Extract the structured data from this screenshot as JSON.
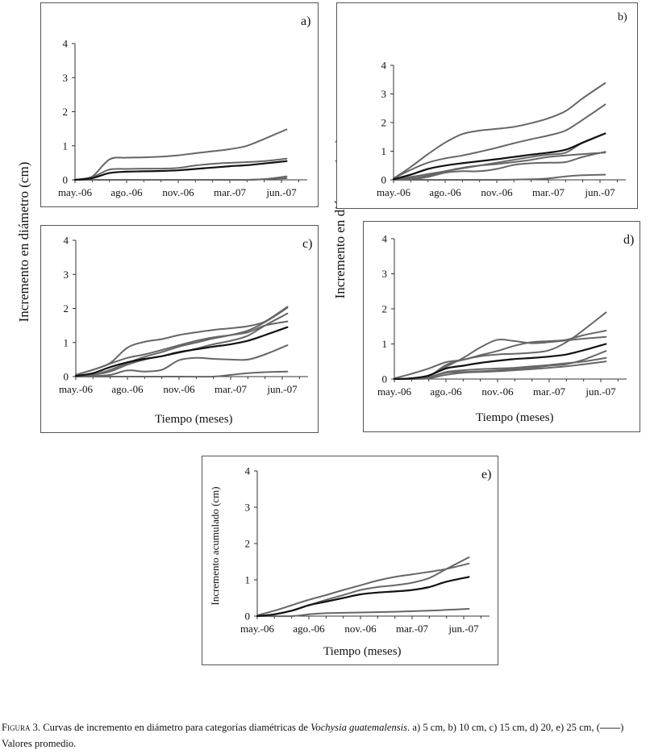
{
  "shared": {
    "ylabel": "Incremento  en  diámetro  (cm)",
    "xtitle": "Tiempo (meses)",
    "colors": {
      "tree": "#666666",
      "average": "#111111",
      "axis": "#333333"
    }
  },
  "chart_data": [
    {
      "id": "a",
      "type": "line",
      "label": "a)",
      "categories": [
        "may.-06",
        "ago.-06",
        "nov.-06",
        "mar.-07",
        "jun.-07"
      ],
      "xlim": [
        0,
        13.5
      ],
      "ylim": [
        0,
        4
      ],
      "yticks": [
        0,
        1,
        2,
        3,
        4
      ],
      "xlabel": "",
      "ylabel": "",
      "series": [
        {
          "name": "tree",
          "x": [
            0,
            1,
            2,
            3,
            4,
            5,
            6,
            7,
            8,
            9,
            10,
            11,
            12.3
          ],
          "values": [
            0,
            0.1,
            0.6,
            0.65,
            0.66,
            0.68,
            0.72,
            0.78,
            0.84,
            0.9,
            1.0,
            1.2,
            1.48
          ]
        },
        {
          "name": "tree",
          "x": [
            0,
            1,
            2,
            3,
            4,
            5,
            6,
            7,
            8,
            9,
            10,
            11,
            12.3
          ],
          "values": [
            0,
            0.08,
            0.3,
            0.32,
            0.33,
            0.33,
            0.35,
            0.42,
            0.47,
            0.5,
            0.52,
            0.55,
            0.62
          ]
        },
        {
          "name": "tree",
          "x": [
            0,
            2,
            4,
            6,
            8,
            10,
            11,
            12.3
          ],
          "values": [
            0,
            0,
            0,
            0,
            0,
            0,
            0.02,
            0.1
          ]
        },
        {
          "name": "tree",
          "x": [
            0,
            2,
            4,
            6,
            8,
            10,
            12.3
          ],
          "values": [
            0,
            0,
            0,
            0,
            0,
            0,
            0.05
          ]
        },
        {
          "name": "average",
          "x": [
            0,
            1,
            2,
            3,
            4,
            5,
            6,
            7,
            8,
            9,
            10,
            11,
            12.3
          ],
          "values": [
            0,
            0.05,
            0.2,
            0.24,
            0.25,
            0.26,
            0.28,
            0.32,
            0.36,
            0.4,
            0.43,
            0.48,
            0.55
          ]
        }
      ]
    },
    {
      "id": "b",
      "type": "line",
      "label": "b)",
      "categories": [
        "may.-06",
        "ago.-06",
        "nov.-06",
        "mar.-07",
        "jun.-07"
      ],
      "xlim": [
        0,
        13.5
      ],
      "ylim": [
        0,
        4
      ],
      "yticks": [
        0,
        1,
        2,
        3,
        4
      ],
      "xlabel": "",
      "ylabel": "",
      "series": [
        {
          "name": "tree",
          "x": [
            0,
            1,
            2,
            3,
            4,
            5,
            6,
            7,
            8,
            9,
            10,
            11,
            12.3
          ],
          "values": [
            0.05,
            0.45,
            0.9,
            1.3,
            1.6,
            1.72,
            1.78,
            1.85,
            1.98,
            2.15,
            2.4,
            2.85,
            3.38
          ]
        },
        {
          "name": "tree",
          "x": [
            0,
            1,
            2,
            3,
            4,
            5,
            6,
            7,
            8,
            9,
            10,
            11,
            12.3
          ],
          "values": [
            0.05,
            0.35,
            0.6,
            0.75,
            0.85,
            0.98,
            1.12,
            1.28,
            1.42,
            1.55,
            1.72,
            2.1,
            2.63
          ]
        },
        {
          "name": "tree",
          "x": [
            0,
            1,
            2,
            3,
            4,
            5,
            6,
            7,
            8,
            9,
            10,
            11,
            12.3
          ],
          "values": [
            0,
            0.1,
            0.2,
            0.3,
            0.4,
            0.5,
            0.6,
            0.7,
            0.8,
            0.88,
            0.95,
            1.3,
            1.62
          ]
        },
        {
          "name": "tree",
          "x": [
            0,
            1,
            2,
            3,
            4,
            5,
            6,
            7,
            8,
            9,
            10,
            11,
            12.3
          ],
          "values": [
            0,
            0.05,
            0.15,
            0.3,
            0.42,
            0.5,
            0.55,
            0.62,
            0.7,
            0.8,
            0.85,
            0.9,
            0.95
          ]
        },
        {
          "name": "tree",
          "x": [
            0,
            1,
            2,
            3,
            4,
            5,
            6,
            7,
            8,
            9,
            10,
            11,
            12.3
          ],
          "values": [
            0,
            0.02,
            0.1,
            0.25,
            0.3,
            0.3,
            0.38,
            0.52,
            0.58,
            0.6,
            0.62,
            0.8,
            0.98
          ]
        },
        {
          "name": "tree",
          "x": [
            0,
            2,
            4,
            6,
            8,
            9,
            10,
            11,
            12.3
          ],
          "values": [
            0,
            0,
            0,
            0,
            0.02,
            0.05,
            0.12,
            0.16,
            0.18
          ]
        },
        {
          "name": "average",
          "x": [
            0,
            1,
            2,
            3,
            4,
            5,
            6,
            7,
            8,
            9,
            10,
            11,
            12.3
          ],
          "values": [
            0.02,
            0.18,
            0.38,
            0.5,
            0.58,
            0.65,
            0.72,
            0.8,
            0.88,
            0.95,
            1.05,
            1.3,
            1.62
          ]
        }
      ]
    },
    {
      "id": "c",
      "type": "line",
      "label": "c)",
      "categories": [
        "may.-06",
        "ago.-06",
        "nov.-06",
        "mar.-07",
        "jun.-07"
      ],
      "xlim": [
        0,
        13.5
      ],
      "ylim": [
        0,
        4
      ],
      "yticks": [
        0,
        1,
        2,
        3,
        4
      ],
      "xlabel": "Tiempo (meses)",
      "ylabel": "",
      "series": [
        {
          "name": "tree",
          "x": [
            0,
            1,
            2,
            3,
            4,
            5,
            6,
            7,
            8,
            9,
            10,
            11,
            12.3
          ],
          "values": [
            0.05,
            0.2,
            0.4,
            0.85,
            1.02,
            1.1,
            1.22,
            1.3,
            1.37,
            1.42,
            1.48,
            1.62,
            2.05
          ]
        },
        {
          "name": "tree",
          "x": [
            0,
            1,
            2,
            3,
            4,
            5,
            6,
            7,
            8,
            9,
            10,
            11,
            12.3
          ],
          "values": [
            0.05,
            0.2,
            0.38,
            0.55,
            0.65,
            0.78,
            0.92,
            1.05,
            1.15,
            1.22,
            1.3,
            1.5,
            1.62
          ]
        },
        {
          "name": "tree",
          "x": [
            0,
            1,
            2,
            3,
            4,
            5,
            6,
            7,
            8,
            9,
            10,
            11,
            12.3
          ],
          "values": [
            0,
            0.05,
            0.2,
            0.4,
            0.58,
            0.72,
            0.88,
            1.0,
            1.12,
            1.22,
            1.35,
            1.6,
            2.02
          ]
        },
        {
          "name": "tree",
          "x": [
            0,
            1,
            2,
            3,
            4,
            5,
            6,
            7,
            8,
            9,
            10,
            11,
            12.3
          ],
          "values": [
            0,
            0.05,
            0.15,
            0.35,
            0.5,
            0.6,
            0.7,
            0.82,
            0.95,
            1.05,
            1.2,
            1.5,
            1.85
          ]
        },
        {
          "name": "tree",
          "x": [
            0,
            1,
            2,
            3,
            4,
            5,
            6,
            7,
            8,
            9,
            10,
            11,
            12.3
          ],
          "values": [
            0,
            0.02,
            0.05,
            0.18,
            0.15,
            0.2,
            0.48,
            0.55,
            0.52,
            0.5,
            0.5,
            0.65,
            0.92
          ]
        },
        {
          "name": "tree",
          "x": [
            0,
            2,
            4,
            6,
            8,
            9,
            10,
            11,
            12.3
          ],
          "values": [
            0,
            0,
            0,
            0,
            0,
            0.05,
            0.1,
            0.13,
            0.15
          ]
        },
        {
          "name": "average",
          "x": [
            0,
            1,
            2,
            3,
            4,
            5,
            6,
            7,
            8,
            9,
            10,
            11,
            12.3
          ],
          "values": [
            0.02,
            0.1,
            0.28,
            0.42,
            0.52,
            0.6,
            0.72,
            0.8,
            0.88,
            0.95,
            1.05,
            1.22,
            1.45
          ]
        }
      ]
    },
    {
      "id": "d",
      "type": "line",
      "label": "d)",
      "categories": [
        "may.-06",
        "ago.-06",
        "nov.-06",
        "mar.-07",
        "jun.-07"
      ],
      "xlim": [
        0,
        13.5
      ],
      "ylim": [
        0,
        4
      ],
      "yticks": [
        0,
        1,
        2,
        3,
        4
      ],
      "xlabel": "Tiempo (meses)",
      "ylabel": "",
      "series": [
        {
          "name": "tree",
          "x": [
            0,
            1,
            2,
            3,
            4,
            5,
            6,
            7,
            8,
            9,
            10,
            11,
            12.3
          ],
          "values": [
            0.02,
            0.15,
            0.3,
            0.48,
            0.55,
            0.68,
            0.8,
            0.95,
            1.05,
            1.08,
            1.12,
            1.25,
            1.38
          ]
        },
        {
          "name": "tree",
          "x": [
            0,
            1,
            2,
            3,
            4,
            5,
            6,
            7,
            8,
            9,
            10,
            11,
            12.3
          ],
          "values": [
            0,
            0.02,
            0.1,
            0.35,
            0.6,
            0.9,
            1.12,
            1.08,
            1.02,
            1.05,
            1.1,
            1.15,
            1.2
          ]
        },
        {
          "name": "tree",
          "x": [
            0,
            1,
            2,
            3,
            4,
            5,
            6,
            7,
            8,
            9,
            10,
            11,
            12.3
          ],
          "values": [
            0,
            0.02,
            0.08,
            0.4,
            0.55,
            0.65,
            0.7,
            0.72,
            0.75,
            0.82,
            1.05,
            1.4,
            1.9
          ]
        },
        {
          "name": "tree",
          "x": [
            0,
            1,
            2,
            3,
            4,
            5,
            6,
            7,
            8,
            9,
            10,
            11,
            12.3
          ],
          "values": [
            0,
            0.01,
            0.05,
            0.18,
            0.2,
            0.22,
            0.25,
            0.28,
            0.32,
            0.38,
            0.42,
            0.55,
            0.8
          ]
        },
        {
          "name": "tree",
          "x": [
            0,
            1,
            2,
            3,
            4,
            5,
            6,
            7,
            8,
            9,
            10,
            11,
            12.3
          ],
          "values": [
            0,
            0.01,
            0.05,
            0.2,
            0.25,
            0.28,
            0.3,
            0.32,
            0.36,
            0.4,
            0.45,
            0.5,
            0.6
          ]
        },
        {
          "name": "tree",
          "x": [
            0,
            1,
            2,
            3,
            4,
            5,
            6,
            7,
            8,
            9,
            10,
            11,
            12.3
          ],
          "values": [
            0,
            0,
            0.02,
            0.12,
            0.18,
            0.2,
            0.22,
            0.25,
            0.28,
            0.32,
            0.36,
            0.42,
            0.5
          ]
        },
        {
          "name": "average",
          "x": [
            0,
            1,
            2,
            3,
            4,
            5,
            6,
            7,
            8,
            9,
            10,
            11,
            12.3
          ],
          "values": [
            0,
            0.02,
            0.1,
            0.3,
            0.38,
            0.46,
            0.52,
            0.57,
            0.6,
            0.64,
            0.7,
            0.82,
            1.0
          ]
        }
      ]
    },
    {
      "id": "e",
      "type": "line",
      "label": "e)",
      "categories": [
        "may.-06",
        "ago.-06",
        "nov.-06",
        "mar.-07",
        "jun.-07"
      ],
      "xlim": [
        0,
        13.5
      ],
      "ylim": [
        0,
        4
      ],
      "yticks": [
        0,
        1,
        2,
        3,
        4
      ],
      "xlabel": "Tiempo (meses)",
      "ylabel": "Incremento acumulado (cm)",
      "series": [
        {
          "name": "tree",
          "x": [
            0,
            1,
            2,
            3,
            4,
            5,
            6,
            7,
            8,
            9,
            10,
            11,
            12.3
          ],
          "values": [
            0.02,
            0.15,
            0.3,
            0.45,
            0.58,
            0.72,
            0.85,
            0.98,
            1.08,
            1.15,
            1.22,
            1.3,
            1.45
          ]
        },
        {
          "name": "tree",
          "x": [
            0,
            1,
            2,
            3,
            4,
            5,
            6,
            7,
            8,
            9,
            10,
            11,
            12.3
          ],
          "values": [
            0,
            0.05,
            0.15,
            0.3,
            0.45,
            0.58,
            0.72,
            0.8,
            0.85,
            0.92,
            1.05,
            1.3,
            1.62
          ]
        },
        {
          "name": "tree",
          "x": [
            0,
            2,
            3,
            4,
            6,
            8,
            10,
            11,
            12.3
          ],
          "values": [
            0,
            0,
            0.05,
            0.08,
            0.1,
            0.12,
            0.15,
            0.17,
            0.2
          ]
        },
        {
          "name": "average",
          "x": [
            0,
            1,
            2,
            3,
            4,
            5,
            6,
            7,
            8,
            9,
            10,
            11,
            12.3
          ],
          "values": [
            0,
            0.05,
            0.15,
            0.3,
            0.4,
            0.5,
            0.6,
            0.65,
            0.68,
            0.72,
            0.8,
            0.95,
            1.08
          ]
        }
      ]
    }
  ],
  "caption": {
    "figure_label": "Figura 3.",
    "text_before_italic": " Curvas de incremento en diámetro para categorías diamétricas de ",
    "species": "Vochysia guatemalensis",
    "text_after_italic": ". a) 5 cm, b) 10 cm, c) 15 cm, d) 20, e) 25 cm, (",
    "legend_symbol": "——",
    "text_end": ") Valores promedio."
  }
}
